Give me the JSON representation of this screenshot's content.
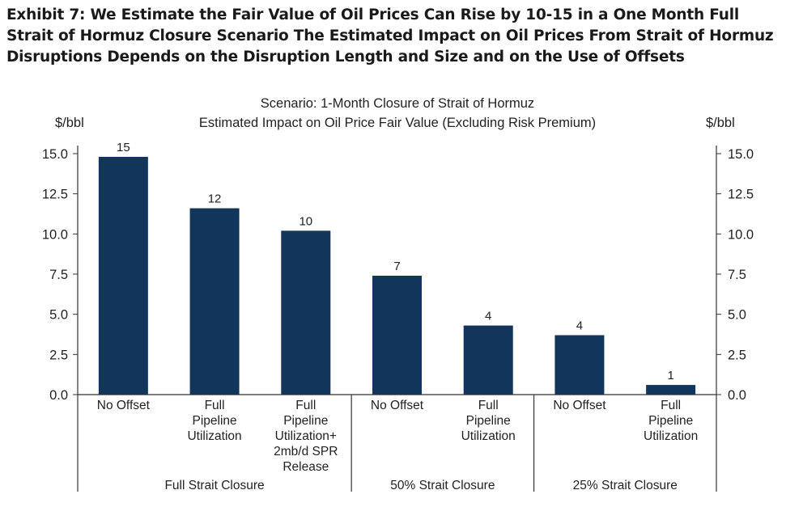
{
  "exhibit_title": "Exhibit 7: We Estimate the Fair Value of Oil Prices Can Rise by 10-15 in a One Month Full Strait of Hormuz Closure Scenario The Estimated Impact on Oil Prices From Strait of Hormuz Disruptions Depends on the Disruption Length and Size and on the Use of Offsets",
  "chart_data": {
    "type": "bar",
    "title": "Scenario: 1-Month Closure of Strait of Hormuz",
    "subtitle": "Estimated Impact on Oil Price Fair Value (Excluding Risk Premium)",
    "ylabel_left": "$/bbl",
    "ylabel_right": "$/bbl",
    "ylim": [
      0,
      15
    ],
    "yticks": [
      "0.0",
      "2.5",
      "5.0",
      "7.5",
      "10.0",
      "12.5",
      "15.0"
    ],
    "bar_color": "#12355b",
    "categories": [
      [
        "No Offset"
      ],
      [
        "Full",
        "Pipeline",
        "Utilization"
      ],
      [
        "Full",
        "Pipeline",
        "Utilization+",
        "2mb/d SPR",
        "Release"
      ],
      [
        "No Offset"
      ],
      [
        "Full",
        "Pipeline",
        "Utilization"
      ],
      [
        "No Offset"
      ],
      [
        "Full",
        "Pipeline",
        "Utilization"
      ]
    ],
    "values": [
      14.8,
      11.6,
      10.2,
      7.4,
      4.3,
      3.7,
      0.6
    ],
    "data_labels": [
      "15",
      "12",
      "10",
      "7",
      "4",
      "4",
      "1"
    ],
    "groups": [
      {
        "label": "Full Strait Closure",
        "start": 0,
        "end": 2
      },
      {
        "label": "50% Strait Closure",
        "start": 3,
        "end": 4
      },
      {
        "label": "25% Strait Closure",
        "start": 5,
        "end": 6
      }
    ]
  }
}
